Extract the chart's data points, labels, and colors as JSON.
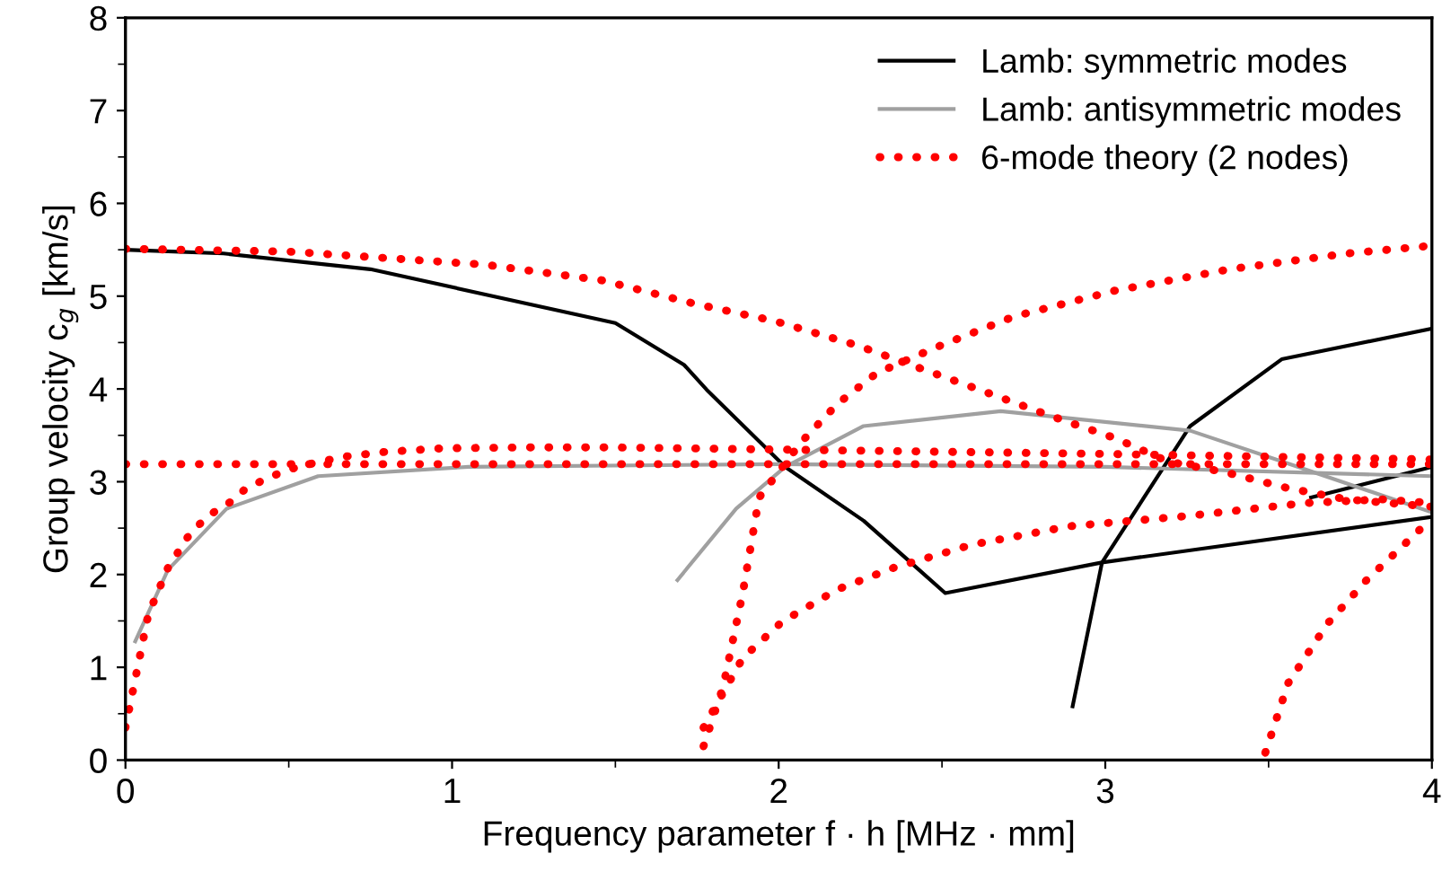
{
  "chart_data": {
    "type": "line",
    "xlabel": "Frequency parameter f · h [MHz · mm]",
    "ylabel": "Group velocity c$_{g}$ [km/s]",
    "xlim": [
      0,
      4
    ],
    "ylim": [
      0,
      8
    ],
    "xticks": [
      0,
      1,
      2,
      3,
      4
    ],
    "yticks": [
      0,
      1,
      2,
      3,
      4,
      5,
      6,
      7,
      8
    ],
    "grid": false,
    "legend": "top right",
    "series": [
      {
        "name": "Lamb: symmetric modes",
        "color": "#000000",
        "x": [
          0,
          0.3,
          0.75,
          1.5,
          1.71,
          1.78,
          2.02,
          2.26,
          2.51,
          2.99,
          4.0
        ],
        "values": [
          5.5,
          5.46,
          5.29,
          4.71,
          4.26,
          3.99,
          3.16,
          2.58,
          1.8,
          2.13,
          2.62
        ]
      },
      {
        "color": "#000000",
        "x": [
          2.9,
          2.99,
          3.26,
          3.54,
          4.0
        ],
        "values": [
          0.58,
          2.13,
          3.6,
          4.32,
          4.65
        ]
      },
      {
        "color": "#000000",
        "x": [
          3.63,
          4.0
        ],
        "values": [
          2.83,
          3.16
        ]
      },
      {
        "name": "Lamb: antisymmetric modes",
        "color": "#a0a0a0",
        "x": [
          0.03,
          0.13,
          0.31,
          0.59,
          1.05,
          2.0,
          3.0,
          4.0
        ],
        "values": [
          1.28,
          2.05,
          2.71,
          3.06,
          3.16,
          3.19,
          3.16,
          3.06
        ]
      },
      {
        "color": "#a0a0a0",
        "x": [
          1.69,
          1.87,
          2.02,
          2.26,
          2.68,
          3.26,
          3.54,
          4.0
        ],
        "values": [
          1.94,
          2.71,
          3.16,
          3.6,
          3.76,
          3.55,
          3.22,
          2.67
        ]
      },
      {
        "name": "6-mode theory (2 nodes)",
        "color": "#ff0000",
        "line_style": "dotted",
        "x": [
          0,
          4
        ],
        "values": [
          3.19,
          3.19
        ]
      },
      {
        "color": "#ff0000",
        "line_style": "dotted",
        "x": [
          0,
          0.07,
          0.13,
          0.19,
          0.25,
          0.31,
          0.37,
          0.43,
          0.49,
          0.55,
          0.67,
          0.79,
          0.97,
          1.21,
          1.5,
          1.93,
          2.99,
          4.0
        ],
        "values": [
          0.35,
          1.57,
          2.07,
          2.4,
          2.63,
          2.75,
          2.93,
          3.03,
          3.12,
          3.18,
          3.27,
          3.32,
          3.36,
          3.37,
          3.37,
          3.35,
          3.3,
          3.24
        ]
      },
      {
        "color": "#ff0000",
        "line_style": "dotted",
        "x": [
          0,
          0.5,
          1.1,
          1.46,
          1.74,
          1.99,
          2.24,
          2.42,
          2.6,
          2.84,
          3.03,
          3.19,
          3.37,
          3.56,
          3.74,
          4.0
        ],
        "values": [
          5.51,
          5.48,
          5.34,
          5.17,
          4.92,
          4.73,
          4.47,
          4.24,
          4.01,
          3.7,
          3.47,
          3.22,
          3.1,
          2.93,
          2.81,
          2.73
        ]
      },
      {
        "color": "#ff0000",
        "line_style": "dotted",
        "x": [
          1.77,
          1.83,
          1.89,
          1.94,
          2.07,
          2.18,
          2.3,
          2.49,
          2.72,
          3.03,
          3.38,
          3.74,
          3.99
        ],
        "values": [
          0.15,
          0.79,
          1.8,
          2.83,
          3.43,
          3.84,
          4.17,
          4.46,
          4.78,
          5.06,
          5.29,
          5.46,
          5.54
        ]
      },
      {
        "color": "#ff0000",
        "line_style": "dotted",
        "x": [
          1.77,
          1.89,
          2.01,
          2.18,
          2.35,
          2.59,
          2.89,
          3.25,
          3.61,
          3.85,
          4.0
        ],
        "values": [
          0.35,
          1.1,
          1.49,
          1.84,
          2.07,
          2.32,
          2.52,
          2.63,
          2.77,
          2.81,
          2.77
        ]
      },
      {
        "color": "#ff0000",
        "line_style": "dotted",
        "x": [
          3.49,
          3.56,
          3.68,
          3.8,
          3.92,
          3.98
        ],
        "values": [
          0.08,
          0.83,
          1.47,
          1.94,
          2.34,
          2.54
        ]
      }
    ]
  }
}
